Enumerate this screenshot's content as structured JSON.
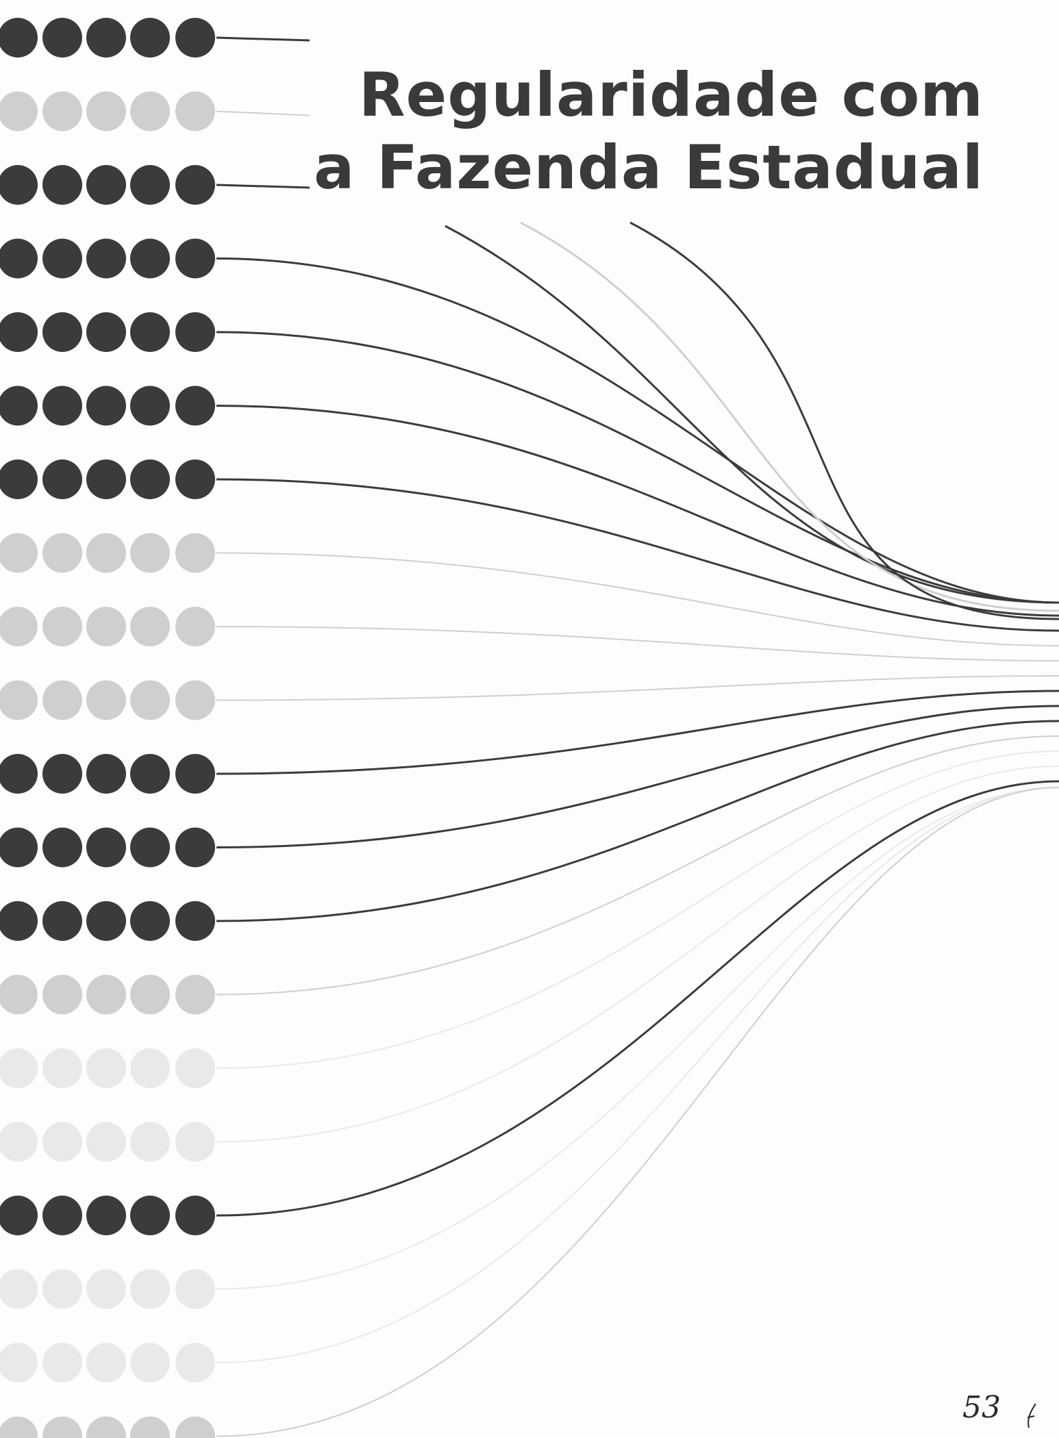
{
  "document": {
    "title_lines": [
      "Regularidade com",
      "a Fazenda Estadual"
    ],
    "page_number": "53",
    "colors": {
      "dark": "#3b3b3b",
      "light": "#cfcfcf",
      "faint": "#e9e9e9",
      "text": "#3a3a3a"
    },
    "rows": [
      {
        "tone": "dark"
      },
      {
        "tone": "light"
      },
      {
        "tone": "dark"
      },
      {
        "tone": "dark"
      },
      {
        "tone": "dark"
      },
      {
        "tone": "dark"
      },
      {
        "tone": "dark"
      },
      {
        "tone": "light"
      },
      {
        "tone": "light"
      },
      {
        "tone": "light"
      },
      {
        "tone": "dark"
      },
      {
        "tone": "dark"
      },
      {
        "tone": "dark"
      },
      {
        "tone": "light"
      },
      {
        "tone": "faint"
      },
      {
        "tone": "faint"
      },
      {
        "tone": "dark"
      },
      {
        "tone": "faint"
      },
      {
        "tone": "faint"
      },
      {
        "tone": "light"
      }
    ]
  }
}
